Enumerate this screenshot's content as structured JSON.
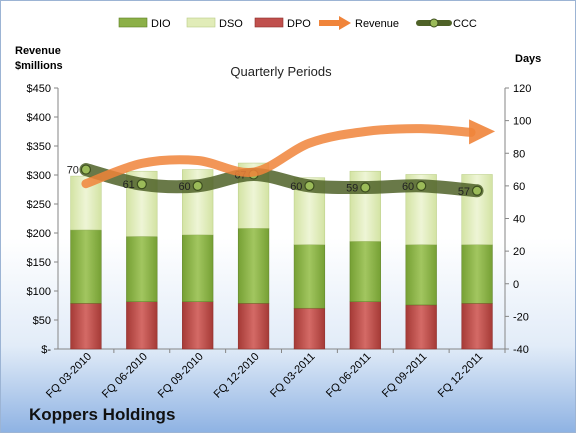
{
  "company": "Koppers Holdings",
  "chart_data": {
    "type": "bar",
    "title": "Quarterly Periods",
    "y_left_label": [
      "Revenue",
      "$millions"
    ],
    "y_right_label": "Days",
    "categories": [
      "FQ 03-2010",
      "FQ 06-2010",
      "FQ 09-2010",
      "FQ 12-2010",
      "FQ 03-2011",
      "FQ 06-2011",
      "FQ 09-2011",
      "FQ 12-2011"
    ],
    "left_ticks": [
      "$-",
      "$50",
      "$100",
      "$150",
      "$200",
      "$250",
      "$300",
      "$350",
      "$400",
      "$450"
    ],
    "right_ticks": [
      "-40",
      "-20",
      "0",
      "20",
      "40",
      "60",
      "80",
      "100",
      "120"
    ],
    "ylim_left": [
      0,
      450
    ],
    "ylim_right": [
      -40,
      120
    ],
    "series": [
      {
        "name": "DIO",
        "type": "bar",
        "axis": "right",
        "color": "#8cb048",
        "values": [
          45,
          40,
          41,
          46,
          39,
          37,
          37,
          36
        ]
      },
      {
        "name": "DSO",
        "type": "bar",
        "axis": "right",
        "color": "#e1ecb8",
        "values": [
          33,
          40,
          40,
          40,
          41,
          43,
          43,
          43
        ]
      },
      {
        "name": "DPO",
        "type": "bar",
        "axis": "right",
        "color": "#c0504d",
        "values": [
          28,
          29,
          29,
          28,
          25,
          29,
          27,
          28
        ]
      },
      {
        "name": "Revenue",
        "type": "line",
        "axis": "left",
        "color": "#f0843a",
        "values": [
          285,
          320,
          325,
          305,
          355,
          375,
          380,
          370
        ]
      },
      {
        "name": "CCC",
        "type": "line",
        "axis": "right",
        "color": "#4f6228",
        "values": [
          70,
          61,
          60,
          67,
          60,
          59,
          60,
          57
        ]
      }
    ],
    "legend": [
      "DIO",
      "DSO",
      "DPO",
      "Revenue",
      "CCC"
    ],
    "legend_position": "top",
    "grid": false
  }
}
